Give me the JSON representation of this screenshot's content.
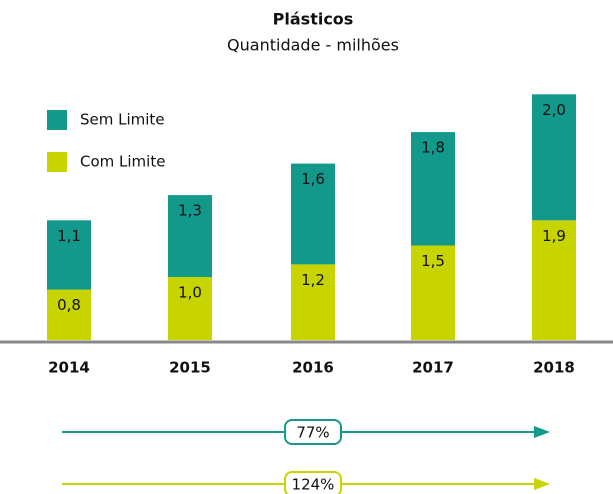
{
  "chart_data": {
    "type": "stacked_bar",
    "title": "Plásticos",
    "subtitle": "Quantidade - milhões",
    "categories": [
      "2014",
      "2015",
      "2016",
      "2017",
      "2018"
    ],
    "series": [
      {
        "name": "Com Limite",
        "color": "#c8d400",
        "values": [
          0.8,
          1.0,
          1.2,
          1.5,
          1.9
        ],
        "value_labels": [
          "0,8",
          "1,0",
          "1,2",
          "1,5",
          "1,9"
        ]
      },
      {
        "name": "Sem Limite",
        "color": "#13998c",
        "values": [
          1.1,
          1.3,
          1.6,
          1.8,
          2.0
        ],
        "value_labels": [
          "1,1",
          "1,3",
          "1,6",
          "1,8",
          "2,0"
        ]
      }
    ],
    "ylim": [
      0,
      4
    ],
    "annotations": [
      {
        "text": "77%",
        "color": "#13998c"
      },
      {
        "text": "124%",
        "color": "#c8d400"
      }
    ]
  }
}
